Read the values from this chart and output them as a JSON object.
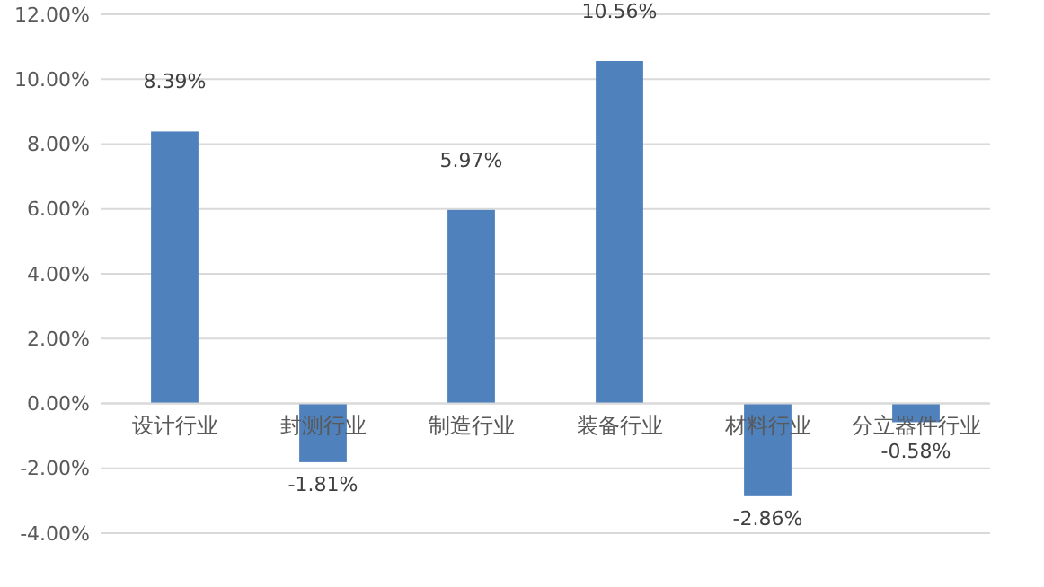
{
  "chart_data": {
    "type": "bar",
    "categories": [
      "设计行业",
      "封测行业",
      "制造行业",
      "装备行业",
      "材料行业",
      "分立器件行业"
    ],
    "values": [
      8.39,
      -1.81,
      5.97,
      10.56,
      -2.86,
      -0.58
    ],
    "value_labels": [
      "8.39%",
      "-1.81%",
      "5.97%",
      "10.56%",
      "-2.86%",
      "-0.58%"
    ],
    "color": "#4f81bd",
    "ylim": [
      -4,
      12
    ],
    "yticks": [
      {
        "value": -4,
        "label": "-4.00%"
      },
      {
        "value": -2,
        "label": "-2.00%"
      },
      {
        "value": 0,
        "label": "0.00%"
      },
      {
        "value": 2,
        "label": "2.00%"
      },
      {
        "value": 4,
        "label": "4.00%"
      },
      {
        "value": 6,
        "label": "6.00%"
      },
      {
        "value": 8,
        "label": "8.00%"
      },
      {
        "value": 10,
        "label": "10.00%"
      },
      {
        "value": 12,
        "label": "12.00%"
      }
    ],
    "grid": "y"
  }
}
